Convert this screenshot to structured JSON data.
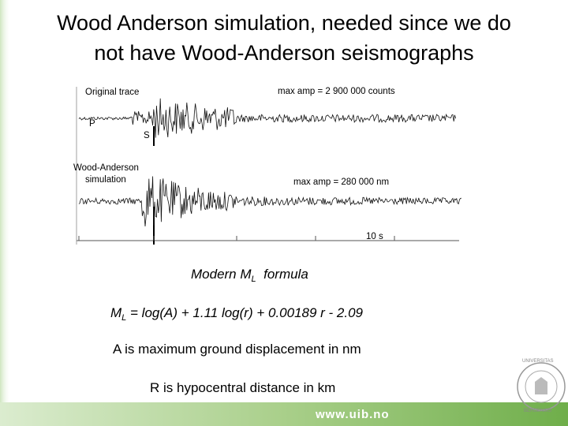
{
  "title": {
    "line1": "Wood Anderson simulation, needed since we do",
    "line2": "not have Wood-Anderson seismographs"
  },
  "figure": {
    "original_label": "Original trace",
    "original_max_amp": "max amp = 2 900 000 counts",
    "p_label": "P",
    "s_label": "S",
    "wa_label_line1": "Wood-Anderson",
    "wa_label_line2": "simulation",
    "wa_max_amp": "max amp = 280 000 nm",
    "scale_label": "10 s"
  },
  "body": {
    "heading": {
      "main": "Modern M",
      "sub": "L",
      "rest": "  formula"
    },
    "formula": {
      "main": "M",
      "sub": "L",
      "rest": " = log(A) + 1.11 log(r) + 0.00189 r - 2.09"
    },
    "line_a": "A is maximum ground displacement in nm",
    "line_r": "R is hypocentral distance in km"
  },
  "footer": {
    "url": "www.uib.no",
    "logo_top": "UNIVERSITAS",
    "logo_bottom": "BERGENSIS"
  }
}
